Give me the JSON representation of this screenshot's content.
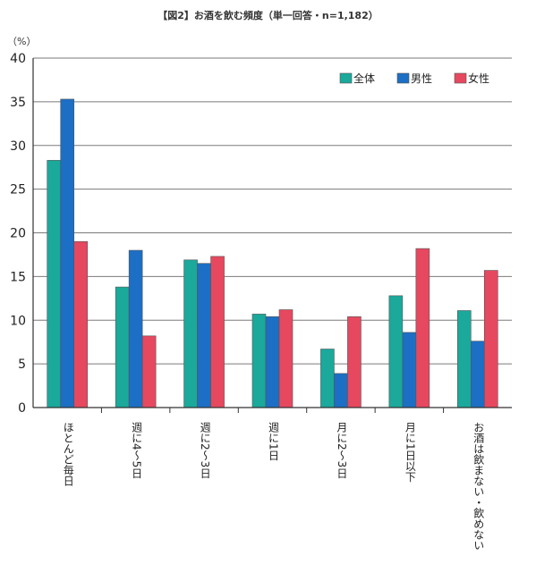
{
  "chart_data": {
    "type": "bar",
    "title": "【図2】お酒を飲む頻度（単一回答・n=1,182）",
    "y_unit": "（%）",
    "ylim": [
      0,
      40
    ],
    "yticks": [
      0,
      5,
      10,
      15,
      20,
      25,
      30,
      35,
      40
    ],
    "grid": true,
    "legend_position": "top-right",
    "categories": [
      "ほとんど毎日",
      "週に4〜5日",
      "週に2〜3日",
      "週に1日",
      "月に2〜3日",
      "月に1日以下",
      "お酒は飲まない・飲めない"
    ],
    "series": [
      {
        "name": "全体",
        "color": "#1aa99b",
        "values": [
          28.3,
          13.8,
          16.9,
          10.7,
          6.7,
          12.8,
          11.1
        ]
      },
      {
        "name": "男性",
        "color": "#1c6fc4",
        "values": [
          35.3,
          18.0,
          16.5,
          10.4,
          3.9,
          8.6,
          7.6
        ]
      },
      {
        "name": "女性",
        "color": "#e6485f",
        "values": [
          19.0,
          8.2,
          17.3,
          11.2,
          10.4,
          18.2,
          15.7
        ]
      }
    ]
  }
}
